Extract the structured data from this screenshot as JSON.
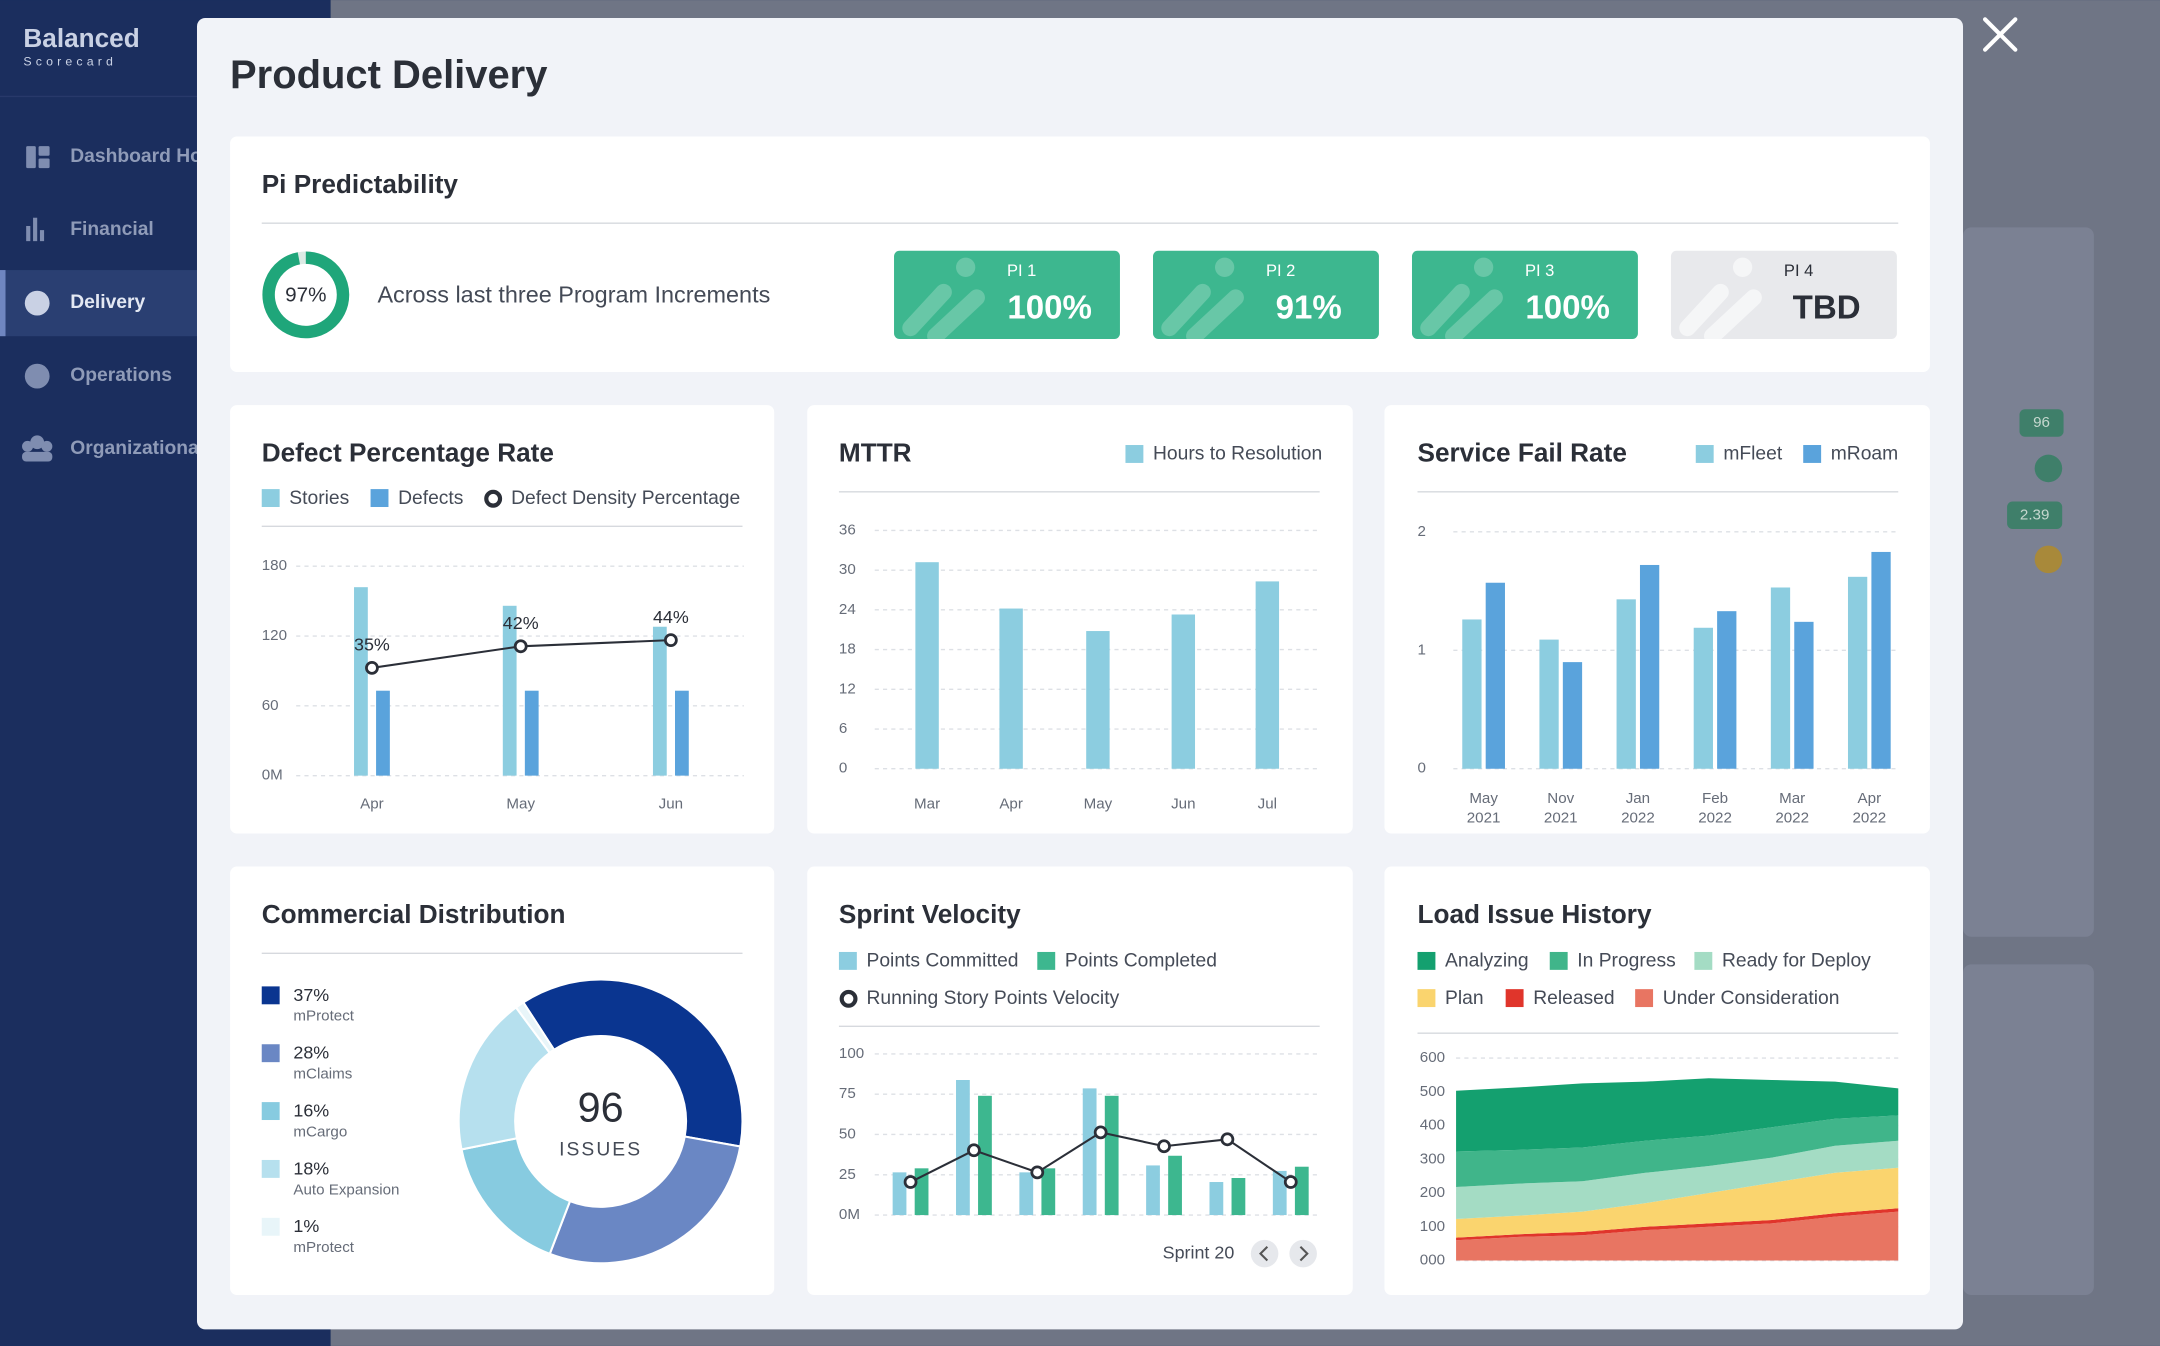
{
  "sidebar": {
    "logo": "Balanced",
    "logo_sub": "Scorecard",
    "nav": [
      "Dashboard Ho",
      "Financial",
      "Delivery",
      "Operations",
      "Organizationa"
    ]
  },
  "background": {
    "badges": [
      "96",
      "2.39"
    ]
  },
  "modal": {
    "title": "Product Delivery",
    "pi": {
      "title": "Pi Predictability",
      "ring": {
        "value": 97,
        "label": "97%"
      },
      "caption": "Across last three Program Increments",
      "cards": [
        {
          "label": "PI 1",
          "value": "100%"
        },
        {
          "label": "PI 2",
          "value": "91%"
        },
        {
          "label": "PI 3",
          "value": "100%"
        },
        {
          "label": "PI 4",
          "value": "TBD"
        }
      ]
    },
    "sprint_label": "Sprint 20"
  },
  "chart_data": [
    {
      "type": "bar",
      "title": "Defect Percentage Rate",
      "categories": [
        "Apr",
        "May",
        "Jun"
      ],
      "series": [
        {
          "name": "Stories",
          "color": "#8ccde0",
          "values": [
            162,
            146,
            128
          ]
        },
        {
          "name": "Defects",
          "color": "#5aa3dc",
          "values": [
            73,
            73,
            73
          ]
        },
        {
          "name": "Defect Density Percentage",
          "type": "line",
          "axis": "y2",
          "color": "#2b2f38",
          "values": [
            35,
            42,
            44
          ],
          "value_labels": [
            "35%",
            "42%",
            "44%"
          ]
        }
      ],
      "ylim": [
        0,
        180
      ],
      "yticks": [
        {
          "value": 0,
          "label": "0M"
        },
        60,
        120,
        180
      ],
      "y2lim": [
        0,
        68
      ],
      "grid": true
    },
    {
      "type": "bar",
      "title": "MTTR",
      "categories": [
        "Mar",
        "Apr",
        "May",
        "Jun",
        "Jul"
      ],
      "series": [
        {
          "name": "Hours to Resolution",
          "color": "#8ccde0",
          "values": [
            31.2,
            24.2,
            20.8,
            23.3,
            28.3
          ]
        }
      ],
      "ylim": [
        0,
        36
      ],
      "yticks": [
        0,
        6,
        12,
        18,
        24,
        30,
        36
      ],
      "grid": true
    },
    {
      "type": "bar",
      "title": "Service Fail Rate",
      "categories": [
        "May 2021",
        "Nov 2021",
        "Jan 2022",
        "Feb 2022",
        "Mar 2022",
        "Apr 2022"
      ],
      "series": [
        {
          "name": "mFleet",
          "color": "#8ccde0",
          "values": [
            1.26,
            1.09,
            1.43,
            1.19,
            1.53,
            1.62
          ]
        },
        {
          "name": "mRoam",
          "color": "#5aa3dc",
          "values": [
            1.57,
            0.9,
            1.72,
            1.33,
            1.24,
            1.83
          ]
        }
      ],
      "ylim": [
        0,
        2
      ],
      "yticks": [
        0,
        1,
        2
      ],
      "grid": true
    },
    {
      "type": "pie",
      "title": "Commercial Distribution",
      "center_value": 96,
      "center_label": "ISSUES",
      "categories": [
        "mProtect",
        "mClaims",
        "mCargo",
        "Auto Expansion",
        "mProtect"
      ],
      "values": [
        37,
        28,
        16,
        18,
        1
      ],
      "value_labels": [
        "37%",
        "28%",
        "16%",
        "18%",
        "1%"
      ],
      "colors": [
        "#0a3590",
        "#6a87c4",
        "#87cbe0",
        "#b6e0ee",
        "#e8f5f9"
      ]
    },
    {
      "type": "bar",
      "title": "Sprint Velocity",
      "categories": [
        null,
        null,
        null,
        null,
        null,
        null,
        null
      ],
      "series": [
        {
          "name": "Points Committed",
          "color": "#8ccde0",
          "values": [
            26.5,
            83.8,
            26.5,
            78.6,
            30.8,
            20.5,
            27.4
          ]
        },
        {
          "name": "Points Completed",
          "color": "#3db78f",
          "values": [
            29,
            74,
            29,
            74,
            36.8,
            23,
            30
          ]
        },
        {
          "name": "Running Story Points Velocity",
          "type": "line",
          "color": "#2b2f38",
          "values": [
            20.5,
            40.2,
            26.5,
            51.3,
            42.7,
            47,
            20.5
          ]
        }
      ],
      "ylim": [
        0,
        100
      ],
      "yticks": [
        {
          "value": 0,
          "label": "0M"
        },
        25,
        50,
        75,
        100
      ],
      "grid": true
    },
    {
      "type": "area",
      "title": "Load Issue History",
      "stacked": true,
      "categories": [
        null,
        null,
        null,
        null,
        null,
        null,
        null,
        null
      ],
      "series": [
        {
          "name": "Analyzing",
          "color": "#14a06f",
          "values": [
            180,
            185,
            190,
            175,
            170,
            140,
            110,
            80
          ]
        },
        {
          "name": "In Progress",
          "color": "#40b58a",
          "values": [
            105,
            100,
            100,
            95,
            90,
            90,
            80,
            75
          ]
        },
        {
          "name": "Ready for Deploy",
          "color": "#a4dcc4",
          "values": [
            95,
            95,
            90,
            90,
            80,
            75,
            80,
            80
          ]
        },
        {
          "name": "Plan",
          "color": "#fad46e",
          "values": [
            55,
            55,
            60,
            70,
            90,
            110,
            120,
            120
          ]
        },
        {
          "name": "Released",
          "color": "#e0352b",
          "values": [
            8,
            8,
            10,
            10,
            10,
            10,
            10,
            10
          ]
        },
        {
          "name": "Under Consideration",
          "color": "#e87562",
          "values": [
            60,
            70,
            75,
            90,
            100,
            110,
            130,
            145
          ]
        }
      ],
      "ylim": [
        0,
        600
      ],
      "yticks": [
        {
          "value": 0,
          "label": "000"
        },
        100,
        200,
        300,
        400,
        500,
        600
      ],
      "grid": true
    }
  ]
}
